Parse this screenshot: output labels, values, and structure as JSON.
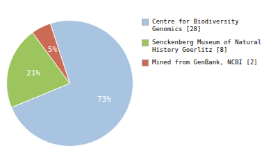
{
  "chart_data": {
    "type": "pie",
    "categories": [
      "Centre for Biodiversity\nGenomics [28]",
      "Senckenberg Museum of Natural\nHistory Goerlitz [8]",
      "Mined from GenBank, NCBI [2]"
    ],
    "values": [
      73,
      21,
      5
    ],
    "colors": [
      "#a8c4e0",
      "#9cc55e",
      "#cc6b55"
    ],
    "data_labels": true,
    "value_labels": [
      "73%",
      "21%",
      "5%"
    ],
    "legend": "right"
  }
}
